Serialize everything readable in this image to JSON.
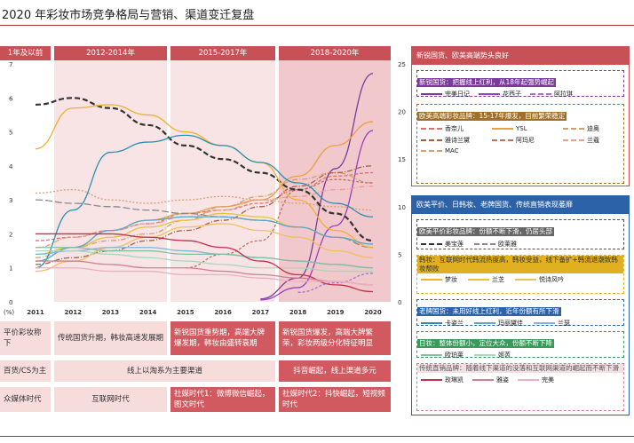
{
  "title": "2020 年彩妆市场竞争格局与营销、渠道变迁复盘",
  "periods": [
    "1年及以前",
    "2012-2014年",
    "2015-2017年",
    "2018-2020年"
  ],
  "chart_data": {
    "type": "line",
    "x": [
      "2011",
      "2012",
      "2013",
      "2014",
      "2015",
      "2016",
      "2017",
      "2018",
      "2019",
      "2020"
    ],
    "yunit": "(%)",
    "ylim_left": [
      0,
      7
    ],
    "yticks_left": [
      "0",
      "1",
      "2",
      "3",
      "4",
      "5",
      "6",
      "7"
    ],
    "ylim_right": [
      0,
      25
    ],
    "yticks_right": [
      "0",
      "5",
      "10",
      "15",
      "20",
      "25"
    ],
    "series": [
      {
        "name": "完美日记",
        "group": "newdomestic",
        "color": "#7a3a9a",
        "dash": "",
        "axis": "right",
        "values": [
          null,
          null,
          null,
          null,
          null,
          null,
          0.3,
          2.5,
          14,
          24
        ]
      },
      {
        "name": "花西子",
        "group": "newdomestic",
        "color": "#9a3fc0",
        "dash": "",
        "axis": "right",
        "values": [
          null,
          null,
          null,
          null,
          null,
          null,
          0.2,
          1.5,
          8,
          18
        ]
      },
      {
        "name": "阿拉琪",
        "group": "newdomestic",
        "color": "#a86fd0",
        "dash": "3,2",
        "axis": "right",
        "values": [
          null,
          null,
          null,
          null,
          null,
          null,
          null,
          1,
          2,
          3
        ]
      },
      {
        "name": "香奈儿",
        "group": "highend",
        "color": "#e07070",
        "dash": "4,2",
        "axis": "left",
        "values": [
          1.8,
          1.9,
          2.1,
          2.3,
          2.6,
          2.7,
          2.9,
          3.3,
          3.7,
          3.8
        ]
      },
      {
        "name": "YSL",
        "group": "highend",
        "color": "#e8a040",
        "dash": "",
        "axis": "left",
        "values": [
          1.2,
          1.6,
          2.1,
          2.4,
          2.6,
          2.8,
          3.0,
          3.7,
          4.6,
          5.3
        ]
      },
      {
        "name": "迪奥",
        "group": "highend",
        "color": "#d0a070",
        "dash": "6,2,1,2",
        "axis": "left",
        "values": [
          1.3,
          1.6,
          1.8,
          2.0,
          2.4,
          2.8,
          3.1,
          3.6,
          3.8,
          3.5
        ]
      },
      {
        "name": "雅诗兰黛",
        "group": "highend",
        "color": "#a0604a",
        "dash": "6,2,1,2",
        "axis": "left",
        "values": [
          1.1,
          1.3,
          1.5,
          1.8,
          2.1,
          2.4,
          2.8,
          3.4,
          3.8,
          4.0
        ]
      },
      {
        "name": "阿玛尼",
        "group": "highend",
        "color": "#c07060",
        "dash": "3,2",
        "axis": "left",
        "values": [
          null,
          null,
          null,
          null,
          1.0,
          1.4,
          1.8,
          3.3,
          3.6,
          3.5
        ]
      },
      {
        "name": "兰蔻",
        "group": "highend",
        "color": "#e8a090",
        "dash": "6,2,1,2",
        "axis": "left",
        "values": [
          1.6,
          1.9,
          2.1,
          2.3,
          2.5,
          2.7,
          3.0,
          3.1,
          3.3,
          3.4
        ]
      },
      {
        "name": "MAC",
        "group": "highend",
        "color": "#d8a070",
        "dash": "2,2",
        "axis": "left",
        "values": [
          3.2,
          3.3,
          3.0,
          2.9,
          3.0,
          3.1,
          3.0,
          2.9,
          2.8,
          2.7
        ]
      },
      {
        "name": "美宝莲",
        "group": "masstige",
        "color": "#333333",
        "dash": "6,3",
        "axis": "left",
        "values": [
          5.8,
          6.0,
          5.7,
          5.2,
          4.6,
          4.2,
          3.8,
          3.3,
          2.6,
          1.8
        ]
      },
      {
        "name": "欧莱雅",
        "group": "masstige",
        "color": "#888888",
        "dash": "8,3",
        "axis": "left",
        "values": [
          3.0,
          2.9,
          2.8,
          2.7,
          2.6,
          2.5,
          2.4,
          2.2,
          1.9,
          1.6
        ]
      },
      {
        "name": "梦妆",
        "group": "korean",
        "color": "#f0b030",
        "dash": "",
        "axis": "left",
        "values": [
          4.5,
          5.7,
          5.8,
          5.5,
          5.0,
          4.6,
          4.1,
          3.0,
          2.1,
          1.6
        ]
      },
      {
        "name": "兰芝",
        "group": "korean",
        "color": "#e8c040",
        "dash": "",
        "axis": "left",
        "values": [
          1.4,
          1.6,
          1.9,
          2.2,
          2.4,
          2.6,
          2.5,
          2.2,
          1.9,
          1.7
        ]
      },
      {
        "name": "悦诗风吟",
        "group": "korean",
        "color": "#f0c060",
        "dash": "",
        "axis": "left",
        "values": [
          0.9,
          1.2,
          1.6,
          1.9,
          2.2,
          2.3,
          2.1,
          1.9,
          1.5,
          1.3
        ]
      },
      {
        "name": "卡姿兰",
        "group": "olddomestic",
        "color": "#2a8fb0",
        "dash": "",
        "axis": "left",
        "values": [
          1.0,
          2.7,
          4.4,
          4.7,
          4.9,
          4.6,
          4.1,
          3.5,
          2.9,
          2.5
        ]
      },
      {
        "name": "玛丽黛佳",
        "group": "olddomestic",
        "color": "#5aa8c8",
        "dash": "",
        "axis": "left",
        "values": [
          1.2,
          1.6,
          2.1,
          2.4,
          2.5,
          2.5,
          2.4,
          2.2,
          1.9,
          1.7
        ]
      },
      {
        "name": "兰瑟",
        "group": "olddomestic",
        "color": "#7ab8d8",
        "dash": "",
        "axis": "left",
        "values": [
          1.4,
          1.5,
          1.6,
          1.6,
          1.5,
          1.4,
          1.3,
          1.2,
          1.1,
          1.0
        ]
      },
      {
        "name": "欧珀莱",
        "group": "japanese",
        "color": "#80c0a0",
        "dash": "",
        "axis": "left",
        "values": [
          1.6,
          1.6,
          1.5,
          1.5,
          1.4,
          1.4,
          1.3,
          1.2,
          1.1,
          1.0
        ]
      },
      {
        "name": "姬芮",
        "group": "japanese",
        "color": "#a8d8b8",
        "dash": "",
        "axis": "left",
        "values": [
          1.5,
          1.5,
          1.4,
          1.3,
          1.2,
          1.1,
          1.0,
          1.0,
          0.9,
          0.9
        ]
      },
      {
        "name": "玫琳凯",
        "group": "directsale",
        "color": "#c0304a",
        "dash": "",
        "axis": "left",
        "values": [
          2.0,
          2.0,
          2.0,
          1.9,
          1.8,
          1.6,
          1.2,
          0.8,
          0.5,
          0.3
        ]
      },
      {
        "name": "雅姿",
        "group": "directsale",
        "color": "#d08090",
        "dash": "",
        "axis": "left",
        "values": [
          1.2,
          1.2,
          1.1,
          1.0,
          1.0,
          0.9,
          0.8,
          0.7,
          0.6,
          0.5
        ]
      },
      {
        "name": "完美",
        "group": "directsale",
        "color": "#e8b0c0",
        "dash": "",
        "axis": "left",
        "values": [
          1.0,
          1.0,
          0.9,
          0.9,
          0.8,
          0.8,
          0.7,
          0.6,
          0.6,
          0.5
        ]
      }
    ]
  },
  "rows": [
    [
      "平价彩妆称下",
      "传统国货升期，韩妆高速发展期",
      "新锐国货重势期，高端大牌爆发期，韩妆由盛转衰期",
      "新锐国货爆发，高端大牌繁荣，彩妆两级分化特征明显"
    ],
    [
      "百货/CS为主",
      "线上以淘系为主要渠道",
      "抖音崛起，线上渠道多元"
    ],
    [
      "众媒体时代",
      "互联网时代",
      "社媒时代1：微博微信崛起，图文时代",
      "社媒时代2：抖快崛起，短视频时代"
    ]
  ],
  "panel1": {
    "header": "新锐国货、欧美高端势头良好",
    "g1_title": "新锐国货：把握线上红利，从18年起强势崛起",
    "g2_title": "欧美高端彩妆品牌：15-17年爆发，目前繁荣稳定"
  },
  "panel2": {
    "header": "欧美平价、日韩妆、老牌国货、传统直销表现萎靡",
    "g1_title": "欧美平价彩妆品牌：份额不断下滑，仍居头部",
    "g2_title": "韩妆：互联网时代韩流热度高，韩妆受益，线下备扩+韩流退潮致韩妆颓败",
    "g3_title": "老牌国货：未用好线上红利，近年份额有所下滑",
    "g4_title": "日妆：整体份额小，定位大众，份额不断下降",
    "g5_title": "传统直销品牌：随着线下渠道的没落和互联网渠道的崛起而不断下滑"
  }
}
